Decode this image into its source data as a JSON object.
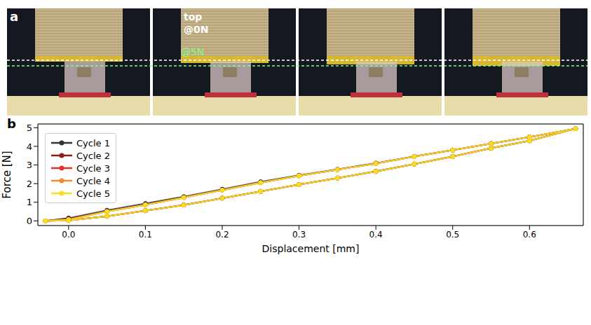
{
  "photo_panel": {
    "label": "a",
    "texts": [
      "top",
      "@0N",
      "@5N"
    ],
    "frames": 4
  },
  "chart_panel_label": "b",
  "chart_data": {
    "type": "line",
    "x_label": "Displacement [mm]",
    "y_label": "Force [N]",
    "x": [
      -0.03,
      0.0,
      0.05,
      0.1,
      0.15,
      0.2,
      0.25,
      0.3,
      0.35,
      0.4,
      0.45,
      0.5,
      0.55,
      0.6,
      0.66,
      0.6,
      0.55,
      0.5,
      0.45,
      0.4,
      0.35,
      0.3,
      0.25,
      0.2,
      0.15,
      0.1,
      0.05,
      0.0,
      -0.03
    ],
    "series": [
      {
        "name": "Cycle 1",
        "color": "#333333",
        "values": [
          0,
          0.15,
          0.57,
          0.93,
          1.3,
          1.7,
          2.1,
          2.45,
          2.77,
          3.1,
          3.46,
          3.8,
          4.15,
          4.5,
          4.95,
          4.3,
          3.9,
          3.46,
          3.05,
          2.66,
          2.3,
          1.95,
          1.58,
          1.22,
          0.86,
          0.55,
          0.25,
          0.03,
          0
        ]
      },
      {
        "name": "Cycle 2",
        "color": "#8b1a1a",
        "values": [
          0,
          0.09,
          0.51,
          0.87,
          1.26,
          1.66,
          2.05,
          2.42,
          2.75,
          3.08,
          3.45,
          3.8,
          4.15,
          4.5,
          4.95,
          4.3,
          3.9,
          3.45,
          3.05,
          2.65,
          2.3,
          1.95,
          1.58,
          1.22,
          0.85,
          0.55,
          0.25,
          0.02,
          0
        ]
      },
      {
        "name": "Cycle 3",
        "color": "#e8302a",
        "values": [
          0,
          0.08,
          0.5,
          0.86,
          1.25,
          1.65,
          2.05,
          2.42,
          2.75,
          3.08,
          3.45,
          3.8,
          4.15,
          4.5,
          4.95,
          4.3,
          3.9,
          3.45,
          3.05,
          2.65,
          2.3,
          1.95,
          1.58,
          1.22,
          0.85,
          0.55,
          0.25,
          0.02,
          0
        ]
      },
      {
        "name": "Cycle 4",
        "color": "#f08a30",
        "values": [
          0,
          0.07,
          0.5,
          0.86,
          1.25,
          1.65,
          2.05,
          2.42,
          2.75,
          3.08,
          3.45,
          3.8,
          4.15,
          4.5,
          4.95,
          4.3,
          3.9,
          3.45,
          3.05,
          2.65,
          2.3,
          1.95,
          1.58,
          1.22,
          0.85,
          0.55,
          0.25,
          0.02,
          0
        ]
      },
      {
        "name": "Cycle 5",
        "color": "#f5e020",
        "values": [
          0,
          0.06,
          0.5,
          0.86,
          1.25,
          1.65,
          2.05,
          2.42,
          2.75,
          3.08,
          3.45,
          3.8,
          4.15,
          4.5,
          4.95,
          4.3,
          3.9,
          3.45,
          3.05,
          2.65,
          2.3,
          1.95,
          1.58,
          1.22,
          0.85,
          0.55,
          0.25,
          0.02,
          0
        ]
      }
    ],
    "xlim": [
      -0.04,
      0.67
    ],
    "xticks": [
      {
        "value": 0,
        "label": "0.0"
      },
      0.1,
      0.2,
      0.3,
      0.4,
      0.5,
      0.6
    ],
    "ylim": [
      -0.25,
      5.2
    ],
    "yticks": [
      0,
      1,
      2,
      3,
      4,
      5
    ],
    "grid": true,
    "legend": "upper left",
    "marker": "circle",
    "line_style": "solid"
  }
}
